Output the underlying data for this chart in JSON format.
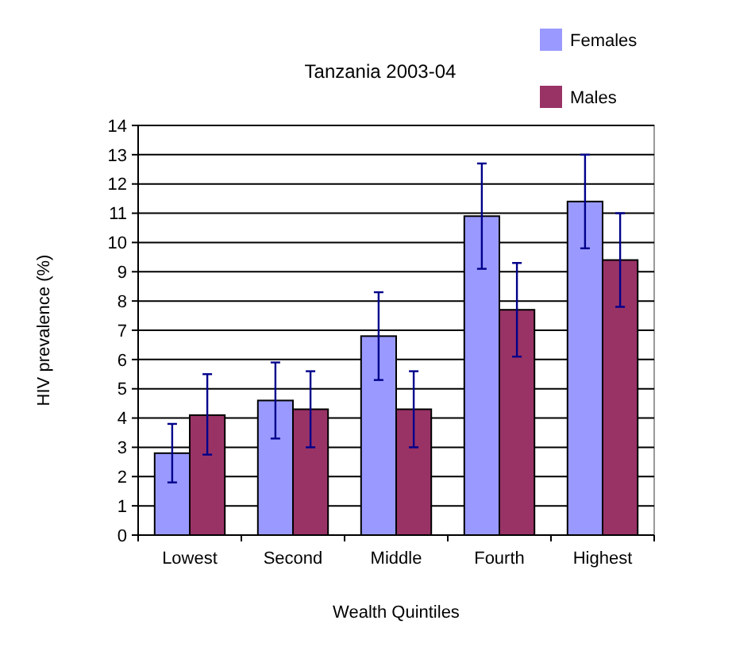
{
  "chart_data": {
    "type": "bar",
    "title": "Tanzania 2003-04",
    "xlabel": "Wealth Quintiles",
    "ylabel": "HIV prevalence (%)",
    "categories": [
      "Lowest",
      "Second",
      "Middle",
      "Fourth",
      "Highest"
    ],
    "series": [
      {
        "name": "Females",
        "color": "#9999ff",
        "values": [
          2.8,
          4.6,
          6.8,
          10.9,
          11.4
        ],
        "errors": [
          [
            1.8,
            3.8
          ],
          [
            3.3,
            5.9
          ],
          [
            5.3,
            8.3
          ],
          [
            9.1,
            12.7
          ],
          [
            9.8,
            13.0
          ]
        ]
      },
      {
        "name": "Males",
        "color": "#993366",
        "values": [
          4.1,
          4.3,
          4.3,
          7.7,
          9.4
        ],
        "errors": [
          [
            2.75,
            5.5
          ],
          [
            3.0,
            5.6
          ],
          [
            3.0,
            5.6
          ],
          [
            6.1,
            9.3
          ],
          [
            7.8,
            11.0
          ]
        ]
      }
    ],
    "ylim": [
      0,
      14
    ],
    "yticks": [
      0,
      1,
      2,
      3,
      4,
      5,
      6,
      7,
      8,
      9,
      10,
      11,
      12,
      13,
      14
    ],
    "grid": "y",
    "legend": "top right"
  }
}
